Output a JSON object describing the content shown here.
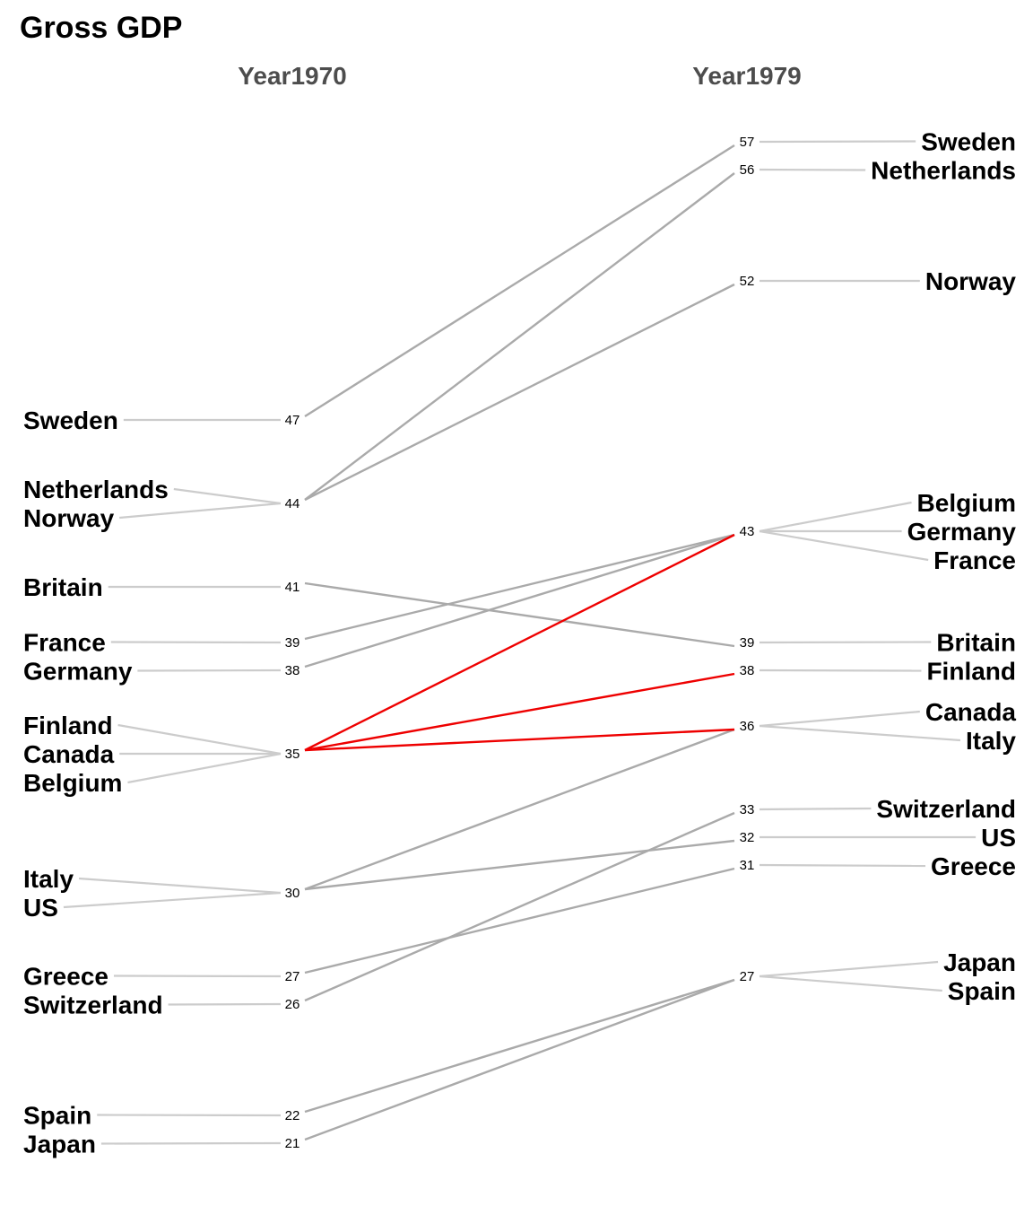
{
  "chart_data": {
    "type": "slope",
    "title": "Gross GDP",
    "columns": [
      "Year1970",
      "Year1979"
    ],
    "series": [
      {
        "name": "Sweden",
        "values": [
          47,
          57
        ]
      },
      {
        "name": "Netherlands",
        "values": [
          44,
          56
        ]
      },
      {
        "name": "Norway",
        "values": [
          44,
          52
        ]
      },
      {
        "name": "Britain",
        "values": [
          41,
          39
        ]
      },
      {
        "name": "France",
        "values": [
          39,
          43
        ]
      },
      {
        "name": "Germany",
        "values": [
          38,
          43
        ]
      },
      {
        "name": "Belgium",
        "values": [
          35,
          43
        ]
      },
      {
        "name": "Canada",
        "values": [
          35,
          36
        ]
      },
      {
        "name": "Finland",
        "values": [
          35,
          38
        ]
      },
      {
        "name": "Italy",
        "values": [
          30,
          36
        ]
      },
      {
        "name": "US",
        "values": [
          30,
          32
        ]
      },
      {
        "name": "Greece",
        "values": [
          27,
          31
        ]
      },
      {
        "name": "Switzerland",
        "values": [
          26,
          33
        ]
      },
      {
        "name": "Spain",
        "values": [
          22,
          27
        ]
      },
      {
        "name": "Japan",
        "values": [
          21,
          27
        ]
      }
    ],
    "left_label_order": [
      "Sweden",
      "Netherlands",
      "Norway",
      "Britain",
      "France",
      "Germany",
      "Finland",
      "Canada",
      "Belgium",
      "Italy",
      "US",
      "Greece",
      "Switzerland",
      "Spain",
      "Japan"
    ],
    "right_label_order": [
      "Sweden",
      "Netherlands",
      "Norway",
      "Belgium",
      "Germany",
      "France",
      "Britain",
      "Finland",
      "Canada",
      "Italy",
      "Switzerland",
      "US",
      "Greece",
      "Japan",
      "Spain"
    ],
    "highlight": {
      "value_1970": 35,
      "color": "#ee0000"
    },
    "line_color": "#aaaaaa",
    "connector_color": "#cccccc"
  }
}
